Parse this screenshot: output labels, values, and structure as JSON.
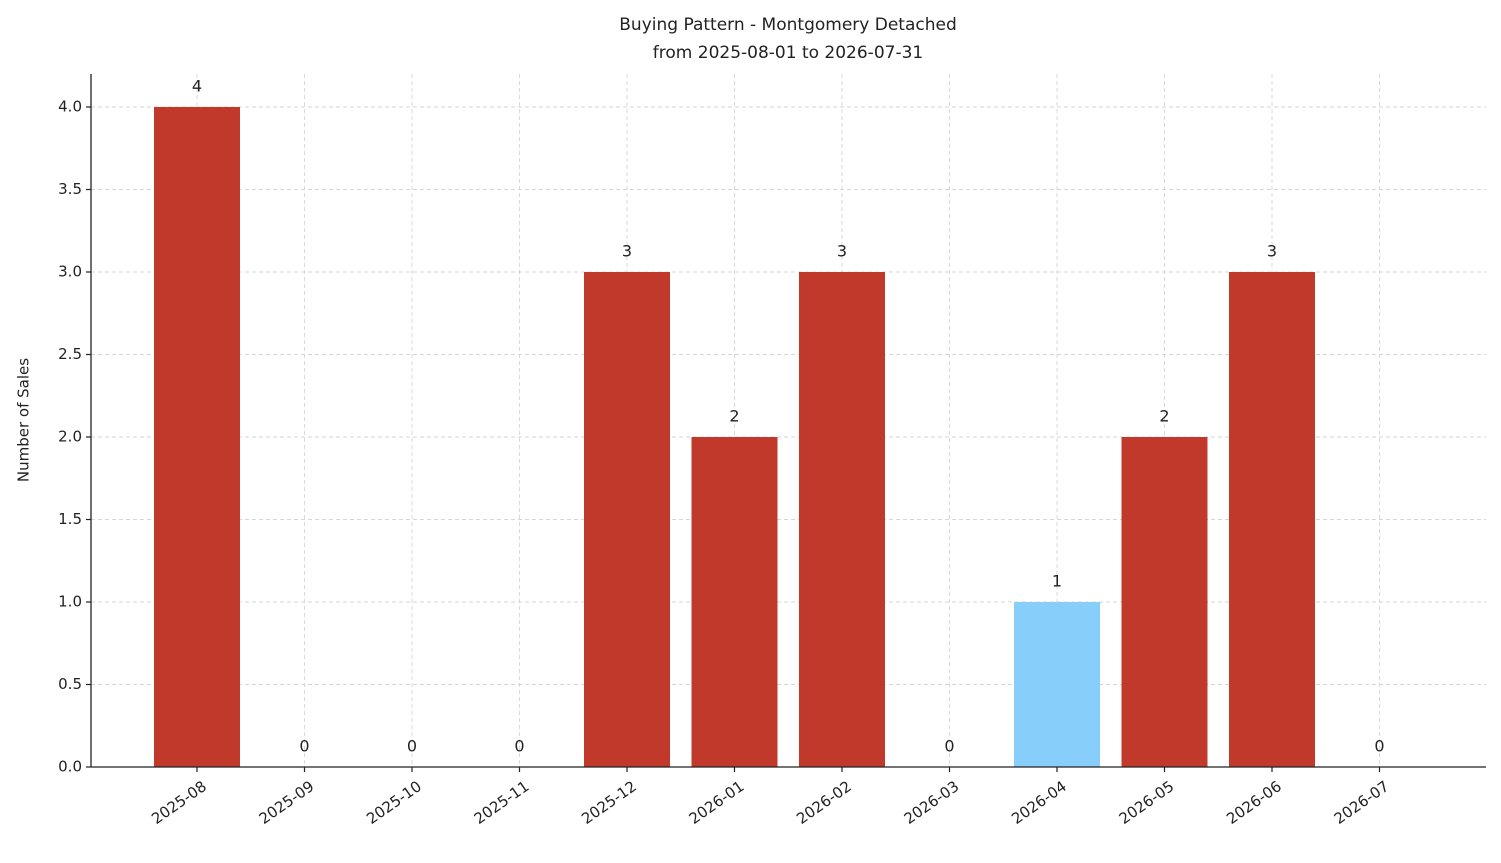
{
  "chart_data": {
    "type": "bar",
    "title": "Buying Pattern - Montgomery Detached",
    "subtitle": "from 2025-08-01 to 2026-07-31",
    "y_label": "Number of Sales",
    "categories": [
      "2025-08",
      "2025-09",
      "2025-10",
      "2025-11",
      "2025-12",
      "2026-01",
      "2026-02",
      "2026-03",
      "2026-04",
      "2026-05",
      "2026-06",
      "2026-07"
    ],
    "values": [
      4,
      0,
      0,
      0,
      3,
      2,
      3,
      0,
      1,
      2,
      3,
      0
    ],
    "colors": [
      "#c0392b",
      "#c0392b",
      "#c0392b",
      "#c0392b",
      "#c0392b",
      "#c0392b",
      "#c0392b",
      "#c0392b",
      "#87cefa",
      "#c0392b",
      "#c0392b",
      "#c0392b"
    ],
    "ylim": [
      0,
      4.2
    ],
    "yticks": [
      {
        "value": 0,
        "label": "0.0"
      },
      0.5,
      {
        "value": 1,
        "label": "1.0"
      },
      1.5,
      {
        "value": 2,
        "label": "2.0"
      },
      2.5,
      {
        "value": 3,
        "label": "3.0"
      },
      3.5,
      {
        "value": 4,
        "label": "4.0"
      }
    ],
    "grid": true
  }
}
